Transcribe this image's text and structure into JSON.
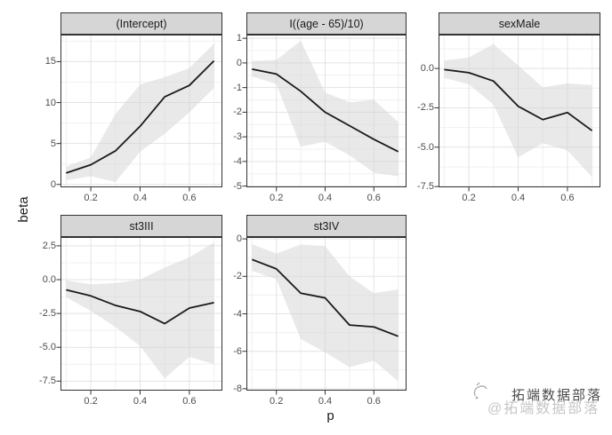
{
  "figure": {
    "y_axis_title": "beta",
    "x_axis_title": "p",
    "watermark": {
      "text_dark": "拓端数据部落",
      "text_light": "@拓端数据部落",
      "icon": "scribble-logo-icon"
    },
    "colors": {
      "background": "#ffffff",
      "strip_bg": "#d6d6d6",
      "strip_border": "#333333",
      "panel_border": "#333333",
      "panel_bg": "#ffffff",
      "grid_major": "#e3e3e3",
      "grid_minor": "#f0f0f0",
      "ribbon": "#d4d4d4",
      "line": "#1a1a1a",
      "tick_mark": "#333333",
      "tick_label": "#4d4d4d",
      "axis_title": "#1a1a1a",
      "watermark_dark": "#4a4a4a",
      "watermark_light": "#c6c6c6"
    }
  },
  "chart_data": [
    {
      "type": "line",
      "title": "(Intercept)",
      "xlabel": "p",
      "ylabel": "beta",
      "x": [
        0.1,
        0.2,
        0.3,
        0.4,
        0.5,
        0.6,
        0.7
      ],
      "y": [
        1.4,
        2.4,
        4.1,
        7.1,
        10.7,
        12.1,
        15.1
      ],
      "ribbon_lower": [
        0.5,
        1.0,
        0.3,
        4.0,
        6.2,
        8.8,
        11.8
      ],
      "ribbon_upper": [
        2.2,
        3.3,
        8.6,
        12.2,
        13.1,
        14.2,
        17.2
      ],
      "xlim": [
        0.077,
        0.734
      ],
      "ylim": [
        -0.35,
        18.3
      ],
      "xticks": {
        "values": [
          0.2,
          0.4,
          0.6
        ],
        "labels": [
          "0.2",
          "0.4",
          "0.6"
        ]
      },
      "yticks": {
        "values": [
          0,
          5,
          10,
          15
        ],
        "labels": [
          "0",
          "5",
          "10",
          "15"
        ]
      },
      "grid": true,
      "legend": false
    },
    {
      "type": "line",
      "title": "I((age - 65)/10)",
      "xlabel": "p",
      "ylabel": "beta",
      "x": [
        0.1,
        0.2,
        0.3,
        0.4,
        0.5,
        0.6,
        0.7
      ],
      "y": [
        -0.25,
        -0.45,
        -1.15,
        -2.0,
        -2.55,
        -3.1,
        -3.6
      ],
      "ribbon_lower": [
        -0.55,
        -0.85,
        -3.4,
        -3.2,
        -3.75,
        -4.45,
        -4.6
      ],
      "ribbon_upper": [
        0.08,
        0.12,
        0.9,
        -1.2,
        -1.6,
        -1.5,
        -2.4
      ],
      "xlim": [
        0.077,
        0.734
      ],
      "ylim": [
        -5.05,
        1.15
      ],
      "xticks": {
        "values": [
          0.2,
          0.4,
          0.6
        ],
        "labels": [
          "0.2",
          "0.4",
          "0.6"
        ]
      },
      "yticks": {
        "values": [
          1,
          0,
          -1,
          -2,
          -3,
          -4,
          -5
        ],
        "labels": [
          "1",
          "0",
          "-1",
          "-2",
          "-3",
          "-4",
          "-5"
        ]
      },
      "grid": true,
      "legend": false
    },
    {
      "type": "line",
      "title": "sexMale",
      "xlabel": "p",
      "ylabel": "beta",
      "x": [
        0.1,
        0.2,
        0.3,
        0.4,
        0.5,
        0.6,
        0.7
      ],
      "y": [
        -0.07,
        -0.27,
        -0.8,
        -2.4,
        -3.25,
        -2.8,
        -3.95
      ],
      "ribbon_lower": [
        -0.6,
        -1.0,
        -2.3,
        -5.65,
        -4.75,
        -5.2,
        -6.9
      ],
      "ribbon_upper": [
        0.5,
        0.7,
        1.55,
        0.2,
        -1.2,
        -0.95,
        -1.05
      ],
      "xlim": [
        0.077,
        0.734
      ],
      "ylim": [
        -7.55,
        2.15
      ],
      "xticks": {
        "values": [
          0.2,
          0.4,
          0.6
        ],
        "labels": [
          "0.2",
          "0.4",
          "0.6"
        ]
      },
      "yticks": {
        "values": [
          0,
          -2.5,
          -5,
          -7.5
        ],
        "labels": [
          "0.0",
          "-2.5",
          "-5.0",
          "-7.5"
        ]
      },
      "grid": true,
      "legend": false
    },
    {
      "type": "line",
      "title": "st3III",
      "xlabel": "p",
      "ylabel": "beta",
      "x": [
        0.1,
        0.2,
        0.3,
        0.4,
        0.5,
        0.6,
        0.7
      ],
      "y": [
        -0.75,
        -1.2,
        -1.9,
        -2.35,
        -3.25,
        -2.1,
        -1.7
      ],
      "ribbon_lower": [
        -1.3,
        -2.3,
        -3.5,
        -4.9,
        -7.3,
        -5.7,
        -6.25
      ],
      "ribbon_upper": [
        -0.05,
        -0.35,
        -0.25,
        0.0,
        0.9,
        1.65,
        2.75
      ],
      "xlim": [
        0.077,
        0.734
      ],
      "ylim": [
        -8.2,
        3.15
      ],
      "xticks": {
        "values": [
          0.2,
          0.4,
          0.6
        ],
        "labels": [
          "0.2",
          "0.4",
          "0.6"
        ]
      },
      "yticks": {
        "values": [
          2.5,
          0,
          -2.5,
          -5,
          -7.5
        ],
        "labels": [
          "2.5",
          "0.0",
          "-2.5",
          "-5.0",
          "-7.5"
        ]
      },
      "grid": true,
      "legend": false
    },
    {
      "type": "line",
      "title": "st3IV",
      "xlabel": "p",
      "ylabel": "beta",
      "x": [
        0.1,
        0.2,
        0.3,
        0.4,
        0.5,
        0.6,
        0.7
      ],
      "y": [
        -1.1,
        -1.6,
        -2.9,
        -3.15,
        -4.6,
        -4.7,
        -5.2
      ],
      "ribbon_lower": [
        -1.7,
        -2.15,
        -5.35,
        -6.05,
        -6.85,
        -6.5,
        -7.6
      ],
      "ribbon_upper": [
        -0.28,
        -0.78,
        -0.3,
        -0.38,
        -2.0,
        -2.9,
        -2.7
      ],
      "xlim": [
        0.077,
        0.734
      ],
      "ylim": [
        -8.1,
        0.1
      ],
      "xticks": {
        "values": [
          0.2,
          0.4,
          0.6
        ],
        "labels": [
          "0.2",
          "0.4",
          "0.6"
        ]
      },
      "yticks": {
        "values": [
          0,
          -2,
          -4,
          -6,
          -8
        ],
        "labels": [
          "0",
          "-2",
          "-4",
          "-6",
          "-8"
        ]
      },
      "grid": true,
      "legend": false
    }
  ]
}
